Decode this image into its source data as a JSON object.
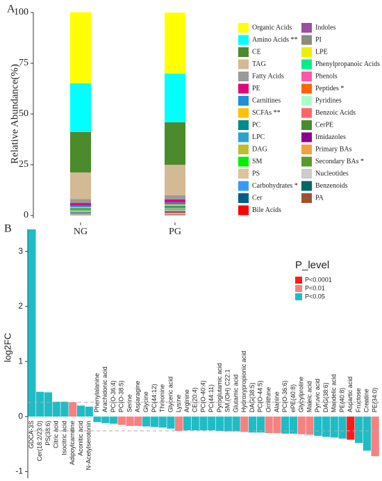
{
  "chart_data": [
    {
      "type": "stacked_bar",
      "panel": "A",
      "y_label": "Relative Abundance(%)",
      "categories": [
        "NG",
        "PG"
      ],
      "ylim": [
        0,
        100
      ],
      "yticks": [
        0,
        25,
        50,
        75,
        100
      ],
      "series": [
        {
          "name": "Organic Acids",
          "color": "#ffff00",
          "values": [
            35,
            30
          ]
        },
        {
          "name": "Amino Acids **",
          "color": "#00ffff",
          "values": [
            24,
            24
          ]
        },
        {
          "name": "CE",
          "color": "#4b8b2b",
          "values": [
            20,
            21
          ]
        },
        {
          "name": "TAG",
          "color": "#d4b995",
          "values": [
            13,
            15
          ]
        },
        {
          "name": "Fatty Acids",
          "color": "#9a9a9a",
          "values": [
            2,
            2
          ]
        },
        {
          "name": "PE",
          "color": "#e0077d",
          "values": [
            1.2,
            1.5
          ]
        },
        {
          "name": "Carnitines",
          "color": "#1c8fd6",
          "values": [
            0.8,
            1
          ]
        },
        {
          "name": "SCFAs **",
          "color": "#ffc000",
          "values": [
            0.6,
            0.8
          ]
        },
        {
          "name": "PC",
          "color": "#008b8b",
          "values": [
            0.5,
            0.6
          ]
        },
        {
          "name": "LPC",
          "color": "#2aa2d0",
          "values": [
            0.4,
            0.5
          ]
        },
        {
          "name": "DAG",
          "color": "#bdbd2f",
          "values": [
            0.3,
            0.4
          ]
        },
        {
          "name": "SM",
          "color": "#00f000",
          "values": [
            0.3,
            0.4
          ]
        },
        {
          "name": "PS",
          "color": "#dcc49a",
          "values": [
            0.3,
            0.4
          ]
        },
        {
          "name": "Carbohydrates *",
          "color": "#3399ff",
          "values": [
            0.3,
            0.4
          ]
        },
        {
          "name": "Cer",
          "color": "#005f8a",
          "values": [
            0.2,
            0.3
          ]
        },
        {
          "name": "Bile Acids",
          "color": "#ff0000",
          "values": [
            0.2,
            0.3
          ]
        },
        {
          "name": "Indoles",
          "color": "#9b4fa0",
          "values": [
            0.07,
            0.09
          ]
        },
        {
          "name": "PI",
          "color": "#8c8c7a",
          "values": [
            0.07,
            0.09
          ]
        },
        {
          "name": "LPE",
          "color": "#eeee00",
          "values": [
            0.07,
            0.09
          ]
        },
        {
          "name": "Phenylpropanoic Acids",
          "color": "#00ee88",
          "values": [
            0.07,
            0.09
          ]
        },
        {
          "name": "Phenols",
          "color": "#ff55aa",
          "values": [
            0.07,
            0.09
          ]
        },
        {
          "name": "Peptides *",
          "color": "#ff6600",
          "values": [
            0.07,
            0.09
          ]
        },
        {
          "name": "Pyridines",
          "color": "#aaffcc",
          "values": [
            0.07,
            0.09
          ]
        },
        {
          "name": "Benzoic Acids",
          "color": "#ff6666",
          "values": [
            0.07,
            0.09
          ]
        },
        {
          "name": "CerPE",
          "color": "#4b8b2b",
          "values": [
            0.07,
            0.09
          ]
        },
        {
          "name": "Imidazoles",
          "color": "#8b008b",
          "values": [
            0.07,
            0.09
          ]
        },
        {
          "name": "Primary BAs",
          "color": "#f4a040",
          "values": [
            0.07,
            0.09
          ]
        },
        {
          "name": "Secondary BAs *",
          "color": "#5a9a2a",
          "values": [
            0.07,
            0.09
          ]
        },
        {
          "name": "Nucleotides",
          "color": "#cccccc",
          "values": [
            0.07,
            0.09
          ]
        },
        {
          "name": "Benzenoids",
          "color": "#006666",
          "values": [
            0.07,
            0.09
          ]
        },
        {
          "name": "PA",
          "color": "#a0522d",
          "values": [
            0.07,
            0.09
          ]
        }
      ]
    },
    {
      "type": "bar",
      "panel": "B",
      "y_label": "log2FC",
      "ylim": [
        -1.12,
        3.4
      ],
      "yticks": [
        -1,
        0,
        1,
        2,
        3
      ],
      "hlines": [
        0.26,
        -0.26
      ],
      "legend": {
        "title": "P_level",
        "entries": [
          {
            "label": "P<0.0001",
            "color": "#ff1a1a"
          },
          {
            "label": "P<0.01",
            "color": "#f88080"
          },
          {
            "label": "P<0.05",
            "color": "#1fbcc6"
          }
        ]
      },
      "categories": [
        "GDCA-3S",
        "Cer(18:2/23:0)",
        "PS(38:6)",
        "Citric acid",
        "Isocitric acid",
        "Adipoylcarnitine",
        "Aconitic acid",
        "N-Acetylserotonin",
        "Phenylalanine",
        "Arachidonic acid",
        "PC(O-36:4)",
        "PC(O-38:5)",
        "Serine",
        "Asparagine",
        "Glycine",
        "PC(44:12)",
        "Threonine",
        "Glyceric acid",
        "Lysine",
        "Arginine",
        "CE(20:4)",
        "PC(O-40:4)",
        "PC(44:11)",
        "Pyroglutamic acid",
        "SM (OH) C22:1",
        "Glutamic acid",
        "Hydroxypropionic acid",
        "DAG(38:5)",
        "PC(O-44:5)",
        "Ornithine",
        "Alanine",
        "PC(O-36:6)",
        "ePE(40:8)",
        "Glycylproline",
        "Maleic acid",
        "Pyruvic acid",
        "DAG(38:6)",
        "Mandelic acid",
        "PE(40:8)",
        "Aspartic acid",
        "Fructose",
        "Creatine",
        "PE(34:0)"
      ],
      "values": [
        3.4,
        0.45,
        0.44,
        0.27,
        0.27,
        0.26,
        0.2,
        0.18,
        -0.1,
        -0.12,
        -0.13,
        -0.15,
        -0.17,
        -0.17,
        -0.18,
        -0.19,
        -0.2,
        -0.22,
        -0.26,
        -0.25,
        -0.25,
        -0.25,
        -0.25,
        -0.26,
        -0.27,
        -0.27,
        -0.28,
        -0.29,
        -0.29,
        -0.3,
        -0.3,
        -0.31,
        -0.31,
        -0.32,
        -0.33,
        -0.35,
        -0.37,
        -0.38,
        -0.4,
        -0.42,
        -0.48,
        -0.62,
        -0.72
      ],
      "levels": [
        "P<0.05",
        "P<0.05",
        "P<0.05",
        "P<0.05",
        "P<0.05",
        "P<0.01",
        "P<0.05",
        "P<0.05",
        "P<0.05",
        "P<0.05",
        "P<0.05",
        "P<0.01",
        "P<0.01",
        "P<0.01",
        "P<0.05",
        "P<0.05",
        "P<0.05",
        "P<0.05",
        "P<0.01",
        "P<0.05",
        "P<0.05",
        "P<0.05",
        "P<0.05",
        "P<0.05",
        "P<0.05",
        "P<0.05",
        "P<0.01",
        "P<0.05",
        "P<0.05",
        "P<0.01",
        "P<0.01",
        "P<0.05",
        "P<0.05",
        "P<0.01",
        "P<0.01",
        "P<0.05",
        "P<0.05",
        "P<0.05",
        "P<0.05",
        "P<0.0001",
        "P<0.05",
        "P<0.05",
        "P<0.01"
      ]
    }
  ]
}
